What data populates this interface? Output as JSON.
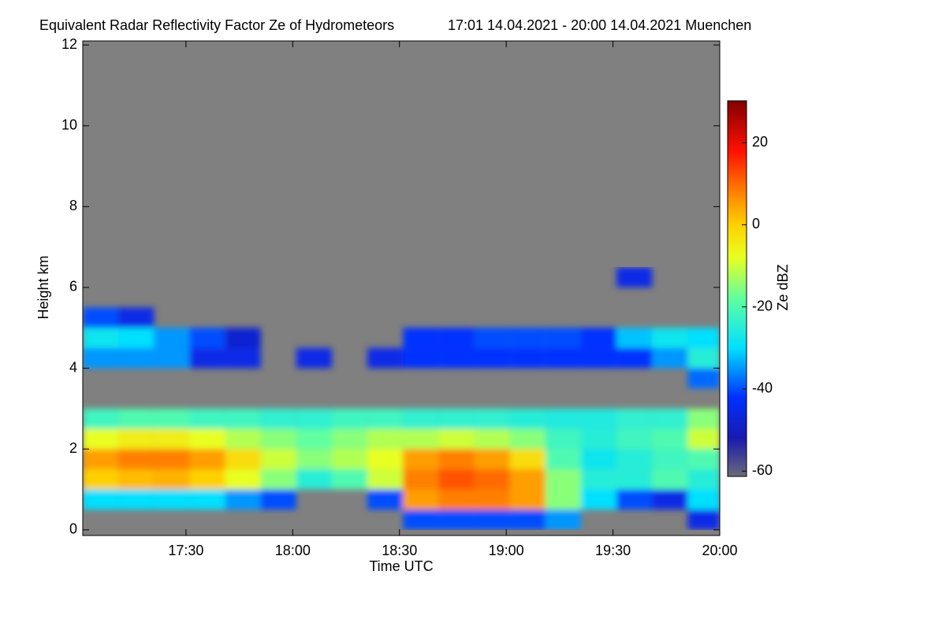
{
  "chart_data": {
    "type": "heatmap",
    "title": "Equivalent Radar Reflectivity Factor Ze of Hydrometeors",
    "subtitle": "17:01 14.04.2021 - 20:00 14.04.2021 Muenchen",
    "x_label": "Time UTC",
    "y_label": "Height km",
    "colorbar_label": "Ze dBZ",
    "background": "#808080",
    "xlim": [
      1021,
      1200
    ],
    "xticks": [
      {
        "value": 1050,
        "label": "17:30"
      },
      {
        "value": 1080,
        "label": "18:00"
      },
      {
        "value": 1110,
        "label": "18:30"
      },
      {
        "value": 1140,
        "label": "19:00"
      },
      {
        "value": 1170,
        "label": "19:30"
      },
      {
        "value": 1200,
        "label": "20:00"
      }
    ],
    "ylim": [
      -0.14,
      12.1
    ],
    "yticks": [
      0,
      2,
      4,
      6,
      8,
      10,
      12
    ],
    "clim": [
      -61.3,
      30.2
    ],
    "cticks": [
      -60,
      -40,
      -20,
      0,
      20
    ],
    "colormap": [
      {
        "value": -61.3,
        "color": "#6a6a7a"
      },
      {
        "value": -52,
        "color": "#1a1ab0"
      },
      {
        "value": -42,
        "color": "#0030ff"
      },
      {
        "value": -30,
        "color": "#00e0ff"
      },
      {
        "value": -18,
        "color": "#60ffa0"
      },
      {
        "value": -8,
        "color": "#e8ff20"
      },
      {
        "value": 0,
        "color": "#ffd000"
      },
      {
        "value": 8,
        "color": "#ff8000"
      },
      {
        "value": 18,
        "color": "#ff1000"
      },
      {
        "value": 30.2,
        "color": "#800000"
      }
    ],
    "x_bins": [
      1021,
      1031,
      1041,
      1051,
      1061,
      1071,
      1081,
      1091,
      1101,
      1111,
      1121,
      1131,
      1141,
      1151,
      1161,
      1171,
      1181,
      1191,
      1200
    ],
    "y_bins": [
      0,
      0.5,
      1,
      1.5,
      2,
      2.5,
      3,
      3.5,
      4,
      4.5,
      5,
      5.5,
      6,
      6.5
    ],
    "z": [
      [
        null,
        null,
        null,
        null,
        null,
        null,
        null,
        null,
        null,
        -40,
        -40,
        -40,
        -40,
        -35,
        null,
        null,
        null,
        -45
      ],
      [
        -30,
        -30,
        -30,
        -30,
        -35,
        -40,
        null,
        null,
        -40,
        5,
        8,
        8,
        5,
        -15,
        -30,
        -40,
        -45,
        -30
      ],
      [
        0,
        2,
        3,
        0,
        -8,
        -15,
        -25,
        -20,
        -10,
        8,
        12,
        10,
        5,
        -15,
        -25,
        -25,
        -20,
        -25
      ],
      [
        5,
        8,
        8,
        5,
        -2,
        -10,
        -15,
        -12,
        -8,
        5,
        8,
        5,
        -2,
        -20,
        -28,
        -25,
        -22,
        -20
      ],
      [
        -8,
        -5,
        -5,
        -8,
        -12,
        -15,
        -18,
        -15,
        -12,
        -12,
        -10,
        -12,
        -15,
        -22,
        -25,
        -22,
        -20,
        -10
      ],
      [
        -22,
        -20,
        -20,
        -22,
        -22,
        -24,
        -24,
        -22,
        -22,
        -24,
        -24,
        -24,
        -25,
        -26,
        -26,
        -24,
        -24,
        -15
      ],
      [
        null,
        null,
        null,
        null,
        null,
        null,
        null,
        null,
        null,
        null,
        null,
        null,
        null,
        null,
        null,
        null,
        null,
        null
      ],
      [
        null,
        null,
        null,
        null,
        null,
        null,
        null,
        null,
        null,
        null,
        null,
        null,
        null,
        null,
        null,
        null,
        null,
        -38
      ],
      [
        -35,
        -35,
        -35,
        -45,
        -45,
        null,
        -45,
        null,
        -45,
        -42,
        -42,
        -42,
        -42,
        -42,
        -42,
        -42,
        -35,
        -25
      ],
      [
        -28,
        -30,
        -35,
        -40,
        -48,
        null,
        null,
        null,
        null,
        -42,
        -42,
        -40,
        -40,
        -40,
        -42,
        -32,
        -28,
        -30
      ],
      [
        -40,
        -45,
        null,
        null,
        null,
        null,
        null,
        null,
        null,
        null,
        null,
        null,
        null,
        null,
        null,
        null,
        null,
        null
      ],
      [
        null,
        null,
        null,
        null,
        null,
        null,
        null,
        null,
        null,
        null,
        null,
        null,
        null,
        null,
        null,
        null,
        null,
        null
      ],
      [
        null,
        null,
        null,
        null,
        null,
        null,
        null,
        null,
        null,
        null,
        null,
        null,
        null,
        null,
        null,
        -45,
        null,
        null
      ]
    ]
  }
}
